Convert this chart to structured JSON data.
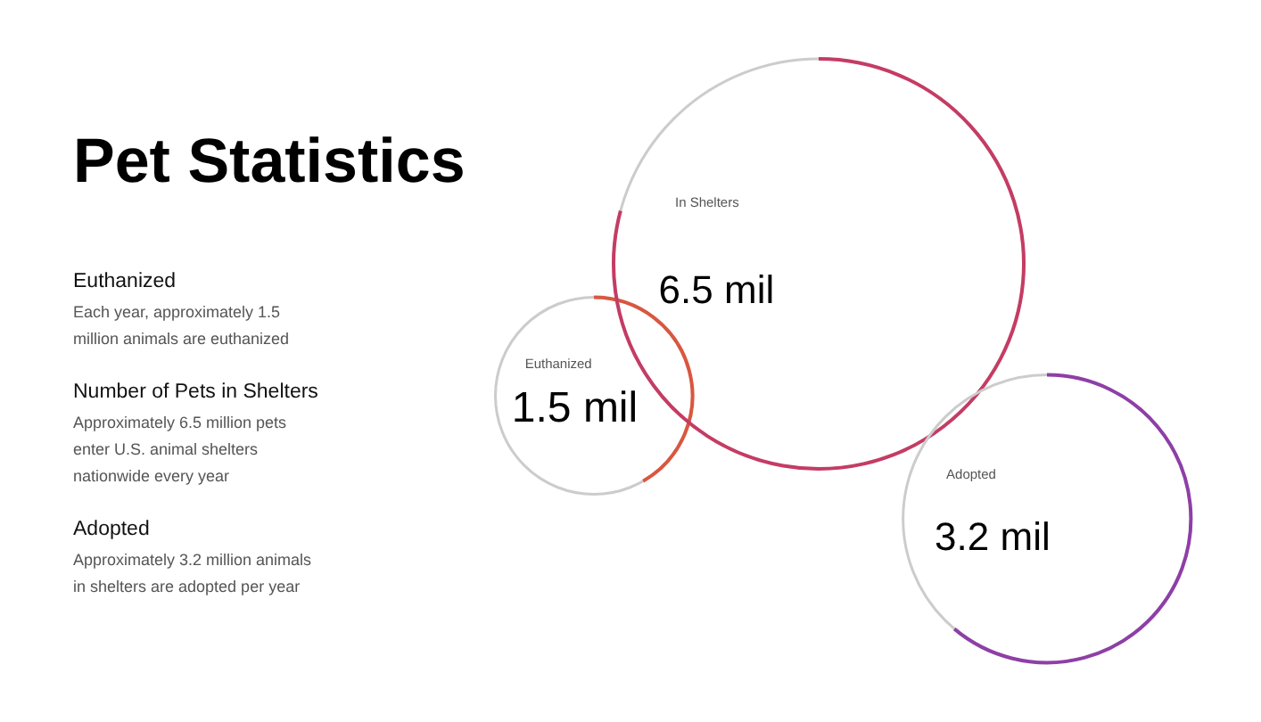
{
  "chart_data": {
    "type": "other",
    "title": "Pet Statistics",
    "categories": [
      "Euthanized",
      "In Shelters",
      "Adopted"
    ],
    "values": [
      1.5,
      6.5,
      3.2
    ],
    "value_labels": [
      "1.5 mil",
      "6.5 mil",
      "3.2 mil"
    ],
    "colors": [
      "#d9573f",
      "#c43c64",
      "#8e3fa6"
    ],
    "annotations": [
      "Euthanized",
      "Each year, approximately 1.5 million animals are euthanized",
      "Number of Pets in Shelters",
      "Approximately 6.5 million pets enter U.S. animal shelters nationwide every year",
      "Adopted",
      "Approximately 3.2 million animals in shelters are adopted per year"
    ]
  }
}
